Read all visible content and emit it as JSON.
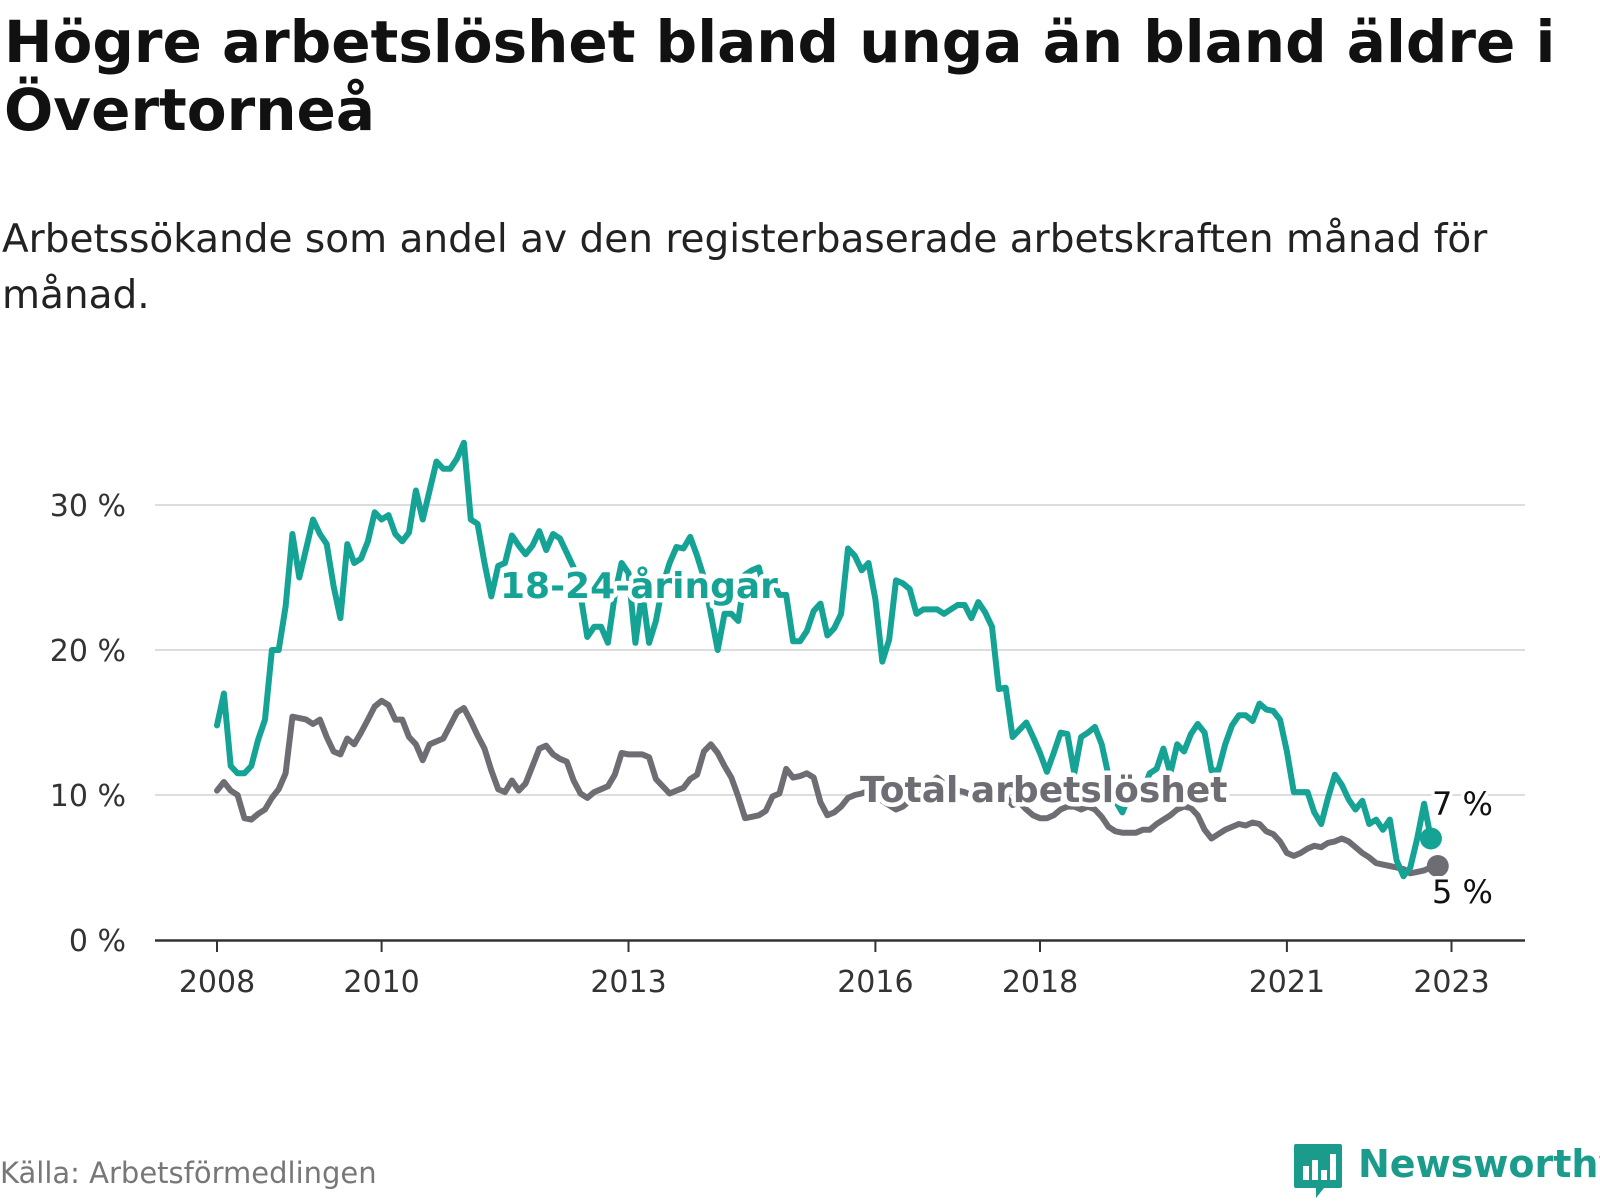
{
  "title": "Högre arbetslöshet bland unga än bland äldre i Övertorneå",
  "subtitle": "Arbetssökande som andel av den registerbaserade arbetskraften månad för månad.",
  "source": "Källa: Arbetsförmedlingen",
  "brand": "Newsworthy",
  "colors": {
    "youth": "#14a395",
    "total": "#6e6d73",
    "grid": "#dddddd",
    "axis": "#333333",
    "brand": "#1a9b8c"
  },
  "chart_data": {
    "type": "line",
    "title": "Högre arbetslöshet bland unga än bland äldre i Övertorneå",
    "xlabel": "",
    "ylabel": "",
    "ylim": [
      0,
      35
    ],
    "xlim": [
      2007.25,
      2024.0
    ],
    "yticks": [
      0,
      10,
      20,
      30
    ],
    "ytick_labels": [
      "0 %",
      "10 %",
      "20 %",
      "30 %"
    ],
    "xticks": [
      2008,
      2010,
      2013,
      2016,
      2018,
      2021,
      2023
    ],
    "xtick_labels": [
      "2008",
      "2010",
      "2013",
      "2016",
      "2018",
      "2021",
      "2023"
    ],
    "x_start": 2008.0,
    "x_step": 0.0833333,
    "series": [
      {
        "name": "18-24-åringar",
        "label": "18-24-åringar",
        "end_label": "7 %",
        "values": [
          14.8,
          17.0,
          12.0,
          11.5,
          11.5,
          12.0,
          13.8,
          15.2,
          20.0,
          20.0,
          23.0,
          28.0,
          25.0,
          27.0,
          29.0,
          28.0,
          27.3,
          24.4,
          22.2,
          27.3,
          26.0,
          26.3,
          27.5,
          29.5,
          29.0,
          29.3,
          28.0,
          27.5,
          28.1,
          31.0,
          29.0,
          31.0,
          33.0,
          32.5,
          32.5,
          33.2,
          34.3,
          29.0,
          28.7,
          26.0,
          23.7,
          25.8,
          26.0,
          27.9,
          27.2,
          26.6,
          27.2,
          28.2,
          26.9,
          28.0,
          27.7,
          26.7,
          25.7,
          23.8,
          20.9,
          21.6,
          21.6,
          20.5,
          23.8,
          26.0,
          25.3,
          20.5,
          24.0,
          20.5,
          22.0,
          24.5,
          26.0,
          27.1,
          27.0,
          27.8,
          26.5,
          25.0,
          22.5,
          20.0,
          22.5,
          22.5,
          22.0,
          25.2,
          25.5,
          25.7,
          23.8,
          24.8,
          23.8,
          23.8,
          20.6,
          20.6,
          21.3,
          22.7,
          23.2,
          21.0,
          21.5,
          22.5,
          27.0,
          26.5,
          25.5,
          26.0,
          23.5,
          19.2,
          20.7,
          24.8,
          24.6,
          24.2,
          22.5,
          22.8,
          22.8,
          22.8,
          22.5,
          22.8,
          23.1,
          23.1,
          22.2,
          23.3,
          22.6,
          21.6,
          17.3,
          17.4,
          14.0,
          14.5,
          15.0,
          14.0,
          12.9,
          11.6,
          12.9,
          14.3,
          14.2,
          11.5,
          14.0,
          14.3,
          14.7,
          13.5,
          11.3,
          9.6,
          8.8,
          10.0,
          10.6,
          10.3,
          11.5,
          11.8,
          13.2,
          11.5,
          13.5,
          13.0,
          14.2,
          14.9,
          14.3,
          11.7,
          11.7,
          13.5,
          14.8,
          15.5,
          15.5,
          15.1,
          16.3,
          15.9,
          15.8,
          15.2,
          13.0,
          10.2,
          10.2,
          10.2,
          8.8,
          8.0,
          9.8,
          11.4,
          10.7,
          9.7,
          9.0,
          9.6,
          8.0,
          8.3,
          7.6,
          8.3,
          5.5,
          4.4,
          5.0,
          7.0,
          9.4,
          7.0
        ]
      },
      {
        "name": "Total arbetslöshet",
        "label": "Total arbetslöshet",
        "end_label": "5 %",
        "values": [
          10.3,
          10.9,
          10.3,
          10.0,
          8.4,
          8.3,
          8.7,
          9.0,
          9.8,
          10.4,
          11.5,
          15.4,
          15.3,
          15.2,
          14.9,
          15.2,
          14.0,
          13.0,
          12.8,
          13.9,
          13.5,
          14.3,
          15.2,
          16.1,
          16.5,
          16.2,
          15.2,
          15.2,
          14.0,
          13.5,
          12.4,
          13.5,
          13.7,
          13.9,
          14.8,
          15.7,
          16.0,
          15.1,
          14.1,
          13.2,
          11.7,
          10.4,
          10.2,
          11.0,
          10.3,
          10.8,
          12.0,
          13.2,
          13.4,
          12.8,
          12.5,
          12.3,
          11.0,
          10.1,
          9.8,
          10.2,
          10.4,
          10.6,
          11.4,
          12.9,
          12.8,
          12.8,
          12.8,
          12.6,
          11.1,
          10.6,
          10.1,
          10.3,
          10.5,
          11.1,
          11.4,
          13.0,
          13.5,
          12.9,
          12.0,
          11.2,
          9.9,
          8.4,
          8.5,
          8.6,
          8.9,
          9.9,
          10.1,
          11.8,
          11.2,
          11.3,
          11.5,
          11.2,
          9.5,
          8.6,
          8.8,
          9.2,
          9.8,
          10.0,
          10.1,
          10.3,
          10.0,
          9.6,
          9.3,
          9.0,
          9.2,
          9.6,
          10.0,
          10.5,
          10.8,
          11.2,
          10.8,
          10.5,
          10.3,
          10.2,
          10.0,
          9.8,
          9.6,
          9.9,
          10.0,
          9.9,
          9.3,
          9.5,
          9.0,
          8.6,
          8.4,
          8.4,
          8.6,
          9.0,
          9.2,
          9.2,
          9.0,
          9.2,
          9.0,
          8.5,
          7.8,
          7.5,
          7.4,
          7.4,
          7.4,
          7.6,
          7.6,
          8.0,
          8.3,
          8.6,
          9.0,
          9.2,
          9.1,
          8.6,
          7.6,
          7.0,
          7.3,
          7.6,
          7.8,
          8.0,
          7.9,
          8.1,
          8.0,
          7.5,
          7.3,
          6.8,
          6.0,
          5.8,
          6.0,
          6.3,
          6.5,
          6.4,
          6.7,
          6.8,
          7.0,
          6.8,
          6.4,
          6.0,
          5.7,
          5.3,
          5.2,
          5.1,
          5.0,
          4.9,
          4.6,
          4.7,
          4.8,
          5.0,
          5.1
        ]
      }
    ]
  }
}
